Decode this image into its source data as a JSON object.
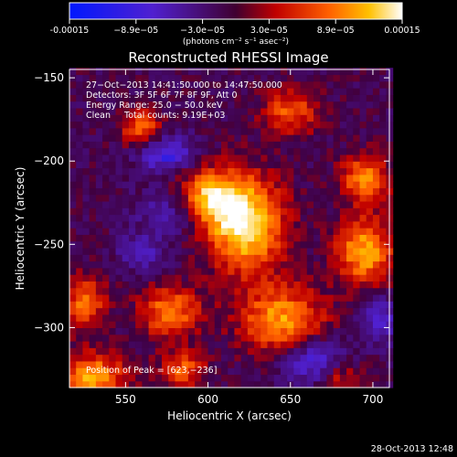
{
  "chart_data": {
    "type": "heatmap",
    "title": "Reconstructed RHESSI Image",
    "xlabel": "Heliocentric X (arcsec)",
    "ylabel": "Heliocentric Y (arcsec)",
    "xlim": [
      516,
      710
    ],
    "ylim": [
      -336,
      -145
    ],
    "xticks": [
      550,
      600,
      650,
      700
    ],
    "yticks": [
      -150,
      -200,
      -250,
      -300
    ],
    "colorbar": {
      "label": "(photons cm⁻² s⁻¹ asec⁻²)",
      "ticks": [
        "-0.00015",
        "−8.9e−05",
        "−3.0e−05",
        "3.0e−05",
        "8.9e−05",
        "0.00015"
      ],
      "range": [
        -0.00015,
        0.00015
      ]
    },
    "annotations": [
      "27−Oct−2013 14:41:50.000  to 14:47:50.000",
      "Detectors: 3F 5F 6F 7F 8F 9F, Att 0",
      "Energy Range: 25.0 − 50.0 keV",
      "Clean     Total counts: 9.19E+03"
    ],
    "peak_label": "Position of Peak = [623,−236]",
    "peak": {
      "x": 623,
      "y": -236
    },
    "grid": false,
    "blobs": [
      {
        "x": 623,
        "y": -238,
        "sx": 16,
        "sy": 20,
        "a": 1.0
      },
      {
        "x": 600,
        "y": -222,
        "sx": 14,
        "sy": 12,
        "a": 0.85
      },
      {
        "x": 577,
        "y": -290,
        "sx": 13,
        "sy": 11,
        "a": 0.65
      },
      {
        "x": 645,
        "y": -295,
        "sx": 18,
        "sy": 14,
        "a": 0.75
      },
      {
        "x": 695,
        "y": -254,
        "sx": 12,
        "sy": 14,
        "a": 0.8
      },
      {
        "x": 695,
        "y": -210,
        "sx": 10,
        "sy": 10,
        "a": 0.7
      },
      {
        "x": 530,
        "y": -330,
        "sx": 14,
        "sy": 10,
        "a": 0.8
      },
      {
        "x": 525,
        "y": -285,
        "sx": 9,
        "sy": 12,
        "a": 0.6
      },
      {
        "x": 560,
        "y": -180,
        "sx": 9,
        "sy": 8,
        "a": 0.6
      },
      {
        "x": 650,
        "y": -170,
        "sx": 12,
        "sy": 10,
        "a": 0.55
      },
      {
        "x": 585,
        "y": -325,
        "sx": 10,
        "sy": 8,
        "a": 0.55
      },
      {
        "x": 680,
        "y": -330,
        "sx": 9,
        "sy": 8,
        "a": 0.45
      },
      {
        "x": 575,
        "y": -195,
        "sx": 12,
        "sy": 8,
        "a": -0.6
      },
      {
        "x": 580,
        "y": -230,
        "sx": 14,
        "sy": 10,
        "a": -0.45
      },
      {
        "x": 665,
        "y": -320,
        "sx": 14,
        "sy": 10,
        "a": -0.55
      },
      {
        "x": 560,
        "y": -255,
        "sx": 10,
        "sy": 8,
        "a": -0.35
      },
      {
        "x": 705,
        "y": -295,
        "sx": 10,
        "sy": 10,
        "a": -0.4
      }
    ]
  }
}
